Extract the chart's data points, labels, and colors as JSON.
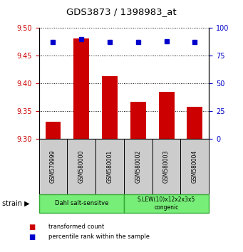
{
  "title": "GDS3873 / 1398983_at",
  "samples": [
    "GSM579999",
    "GSM580000",
    "GSM580001",
    "GSM580002",
    "GSM580003",
    "GSM580004"
  ],
  "transformed_counts": [
    9.33,
    9.481,
    9.413,
    9.366,
    9.385,
    9.358
  ],
  "percentile_ranks": [
    87,
    90,
    87,
    87,
    88,
    87
  ],
  "ylim_left": [
    9.3,
    9.5
  ],
  "ylim_right": [
    0,
    100
  ],
  "yticks_left": [
    9.3,
    9.35,
    9.4,
    9.45,
    9.5
  ],
  "yticks_right": [
    0,
    25,
    50,
    75,
    100
  ],
  "bar_color": "#cc0000",
  "dot_color": "#0000cc",
  "bar_bottom": 9.3,
  "group1_label": "Dahl salt-sensitve",
  "group2_label": "S.LEW(10)x12x2x3x5\ncongenic",
  "group_color": "#77ee77",
  "group_edge_color": "#33aa33",
  "sample_box_color": "#cccccc",
  "strain_label": "strain",
  "legend_bar_label": "transformed count",
  "legend_dot_label": "percentile rank within the sample",
  "tick_label_color_left": "#cc0000",
  "tick_label_color_right": "#0000cc"
}
